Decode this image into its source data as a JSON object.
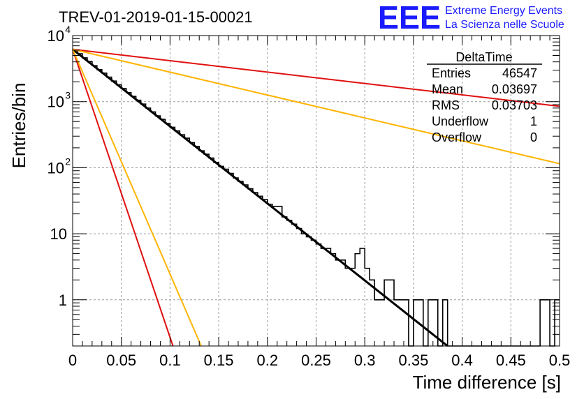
{
  "chart_data": {
    "type": "line",
    "title": "TREV-01-2019-01-15-00021",
    "xlabel": "Time difference [s]",
    "ylabel": "Entries/bin",
    "xlim": [
      0,
      0.5
    ],
    "ylim": [
      0.2,
      10000
    ],
    "y_scale": "log",
    "grid": true,
    "x_ticks": [
      "0",
      "0.05",
      "0.1",
      "0.15",
      "0.2",
      "0.25",
      "0.3",
      "0.35",
      "0.4",
      "0.45",
      "0.5"
    ],
    "y_ticks": [
      {
        "value": 1,
        "label": "1"
      },
      {
        "value": 10,
        "label": "10"
      },
      {
        "value": 100,
        "label": "10",
        "exp": "2"
      },
      {
        "value": 1000,
        "label": "10",
        "exp": "3"
      },
      {
        "value": 10000,
        "label": "10",
        "exp": "4"
      }
    ],
    "histogram": {
      "bin_width": 0.005,
      "values": [
        6000,
        5300,
        4600,
        4050,
        3500,
        3050,
        2700,
        2350,
        2050,
        1800,
        1580,
        1370,
        1200,
        1050,
        920,
        800,
        700,
        610,
        540,
        470,
        410,
        360,
        315,
        280,
        240,
        210,
        180,
        160,
        140,
        120,
        105,
        95,
        82,
        70,
        62,
        55,
        48,
        42,
        37,
        33,
        28,
        26,
        26,
        18,
        16,
        14,
        12,
        10,
        9,
        8,
        7,
        6,
        6,
        5,
        4,
        4,
        3,
        3,
        5,
        6,
        3,
        2,
        1,
        1,
        2,
        2,
        1,
        1,
        1,
        0,
        1,
        1,
        0,
        1,
        1,
        0,
        1,
        0,
        0,
        0,
        0,
        0,
        0,
        0,
        0,
        0,
        0,
        0,
        0,
        0,
        0,
        0,
        0,
        0,
        0,
        0,
        1,
        1,
        0,
        1
      ]
    },
    "series": [
      {
        "color": "#000000",
        "points": [
          [
            0,
            6200
          ],
          [
            0.385,
            0.2
          ]
        ]
      },
      {
        "color": "#e01010",
        "points": [
          [
            0,
            6200
          ],
          [
            0.5,
            850
          ]
        ]
      },
      {
        "color": "#ffb400",
        "points": [
          [
            0,
            6200
          ],
          [
            0.5,
            115
          ]
        ]
      },
      {
        "color": "#e01010",
        "points": [
          [
            0,
            6200
          ],
          [
            0.103,
            0.2
          ]
        ]
      },
      {
        "color": "#ffb400",
        "points": [
          [
            0,
            6200
          ],
          [
            0.132,
            0.2
          ]
        ]
      }
    ],
    "stats_box": {
      "title": "DeltaTime",
      "rows": [
        {
          "label": "Entries",
          "value": "46547"
        },
        {
          "label": "Mean",
          "value": "0.03697"
        },
        {
          "label": "RMS",
          "value": "0.03703"
        },
        {
          "label": "Underflow",
          "value": "1"
        },
        {
          "label": "Overflow",
          "value": "0"
        }
      ]
    }
  },
  "logo": {
    "mark": "EEE",
    "line1": "Extreme Energy Events",
    "line2": "La Scienza nelle Scuole",
    "color": "#1a1aff"
  }
}
